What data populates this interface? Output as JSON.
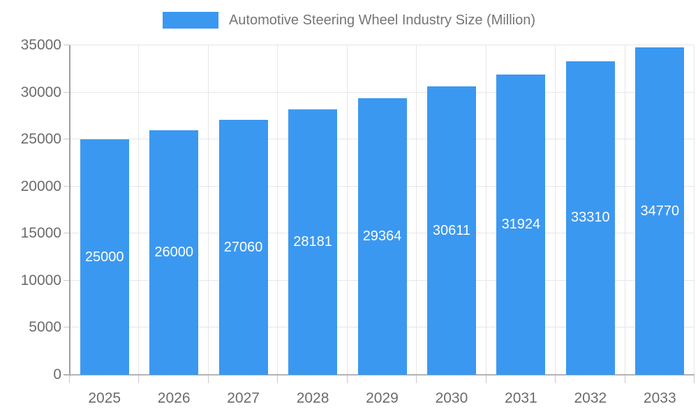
{
  "chart_data": {
    "type": "bar",
    "title": "Automotive Steering Wheel Industry Size (Million)",
    "legend": {
      "position": "top",
      "label": "Automotive Steering Wheel Industry Size (Million)"
    },
    "categories": [
      "2025",
      "2026",
      "2027",
      "2028",
      "2029",
      "2030",
      "2031",
      "2032",
      "2033"
    ],
    "values": [
      25000,
      26000,
      27060,
      28181,
      29364,
      30611,
      31924,
      33310,
      34770
    ],
    "value_labels": [
      "25000",
      "26000",
      "27060",
      "28181",
      "29364",
      "30611",
      "31924",
      "33310",
      "34770"
    ],
    "xlabel": "",
    "ylabel": "",
    "ylim": [
      0,
      35000
    ],
    "y_ticks": [
      0,
      5000,
      10000,
      15000,
      20000,
      25000,
      30000,
      35000
    ],
    "y_tick_labels": [
      "0",
      "5000",
      "10000",
      "15000",
      "20000",
      "25000",
      "30000",
      "35000"
    ],
    "grid": "on"
  },
  "colors": {
    "bar": "#3B98F0",
    "gridline": "#e6e6e6",
    "y_axis_line": "#9e9e9e",
    "x_axis_line": "#b3b3b3",
    "tick_mark": "#c9c9c9",
    "axis_label_text": "#6b6b6b",
    "legend_text": "#757575",
    "bar_value_text": "#ffffff"
  }
}
